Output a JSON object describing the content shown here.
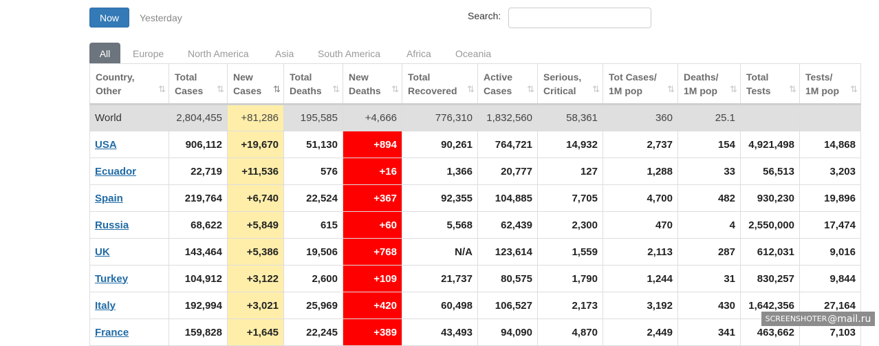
{
  "controls": {
    "now_label": "Now",
    "yesterday_label": "Yesterday",
    "search_label": "Search:",
    "search_value": ""
  },
  "tabs": [
    "All",
    "Europe",
    "North America",
    "Asia",
    "South America",
    "Africa",
    "Oceania"
  ],
  "columns": [
    [
      "Country,",
      "Other"
    ],
    [
      "Total",
      "Cases"
    ],
    [
      "New",
      "Cases"
    ],
    [
      "Total",
      "Deaths"
    ],
    [
      "New",
      "Deaths"
    ],
    [
      "Total",
      "Recovered"
    ],
    [
      "Active",
      "Cases"
    ],
    [
      "Serious,",
      "Critical"
    ],
    [
      "Tot Cases/",
      "1M pop"
    ],
    [
      "Deaths/",
      "1M pop"
    ],
    [
      "Total",
      "Tests"
    ],
    [
      "Tests/",
      "1M pop"
    ]
  ],
  "sort_icon": "⇅",
  "world_row": [
    "World",
    "2,804,455",
    "+81,286",
    "195,585",
    "+4,666",
    "776,310",
    "1,832,560",
    "58,361",
    "360",
    "25.1",
    "",
    ""
  ],
  "rows": [
    [
      "USA",
      "906,112",
      "+19,670",
      "51,130",
      "+894",
      "90,261",
      "764,721",
      "14,932",
      "2,737",
      "154",
      "4,921,498",
      "14,868"
    ],
    [
      "Ecuador",
      "22,719",
      "+11,536",
      "576",
      "+16",
      "1,366",
      "20,777",
      "127",
      "1,288",
      "33",
      "56,513",
      "3,203"
    ],
    [
      "Spain",
      "219,764",
      "+6,740",
      "22,524",
      "+367",
      "92,355",
      "104,885",
      "7,705",
      "4,700",
      "482",
      "930,230",
      "19,896"
    ],
    [
      "Russia",
      "68,622",
      "+5,849",
      "615",
      "+60",
      "5,568",
      "62,439",
      "2,300",
      "470",
      "4",
      "2,550,000",
      "17,474"
    ],
    [
      "UK",
      "143,464",
      "+5,386",
      "19,506",
      "+768",
      "N/A",
      "123,614",
      "1,559",
      "2,113",
      "287",
      "612,031",
      "9,016"
    ],
    [
      "Turkey",
      "104,912",
      "+3,122",
      "2,600",
      "+109",
      "21,737",
      "80,575",
      "1,790",
      "1,244",
      "31",
      "830,257",
      "9,844"
    ],
    [
      "Italy",
      "192,994",
      "+3,021",
      "25,969",
      "+420",
      "60,498",
      "106,527",
      "2,173",
      "3,192",
      "430",
      "1,642,356",
      "27,164"
    ],
    [
      "France",
      "159,828",
      "+1,645",
      "22,245",
      "+389",
      "43,493",
      "94,090",
      "4,870",
      "2,449",
      "341",
      "463,662",
      "7,103"
    ]
  ],
  "colors": {
    "primary": "#337ab7",
    "new_cases_bg": "#ffeeaa",
    "new_deaths_bg": "#ff0000",
    "world_bg": "#dfdfdf",
    "country_link": "#1f6aa5"
  },
  "watermark": {
    "prefix": "SCREENSHOTER",
    "suffix": "@mail.ru"
  }
}
